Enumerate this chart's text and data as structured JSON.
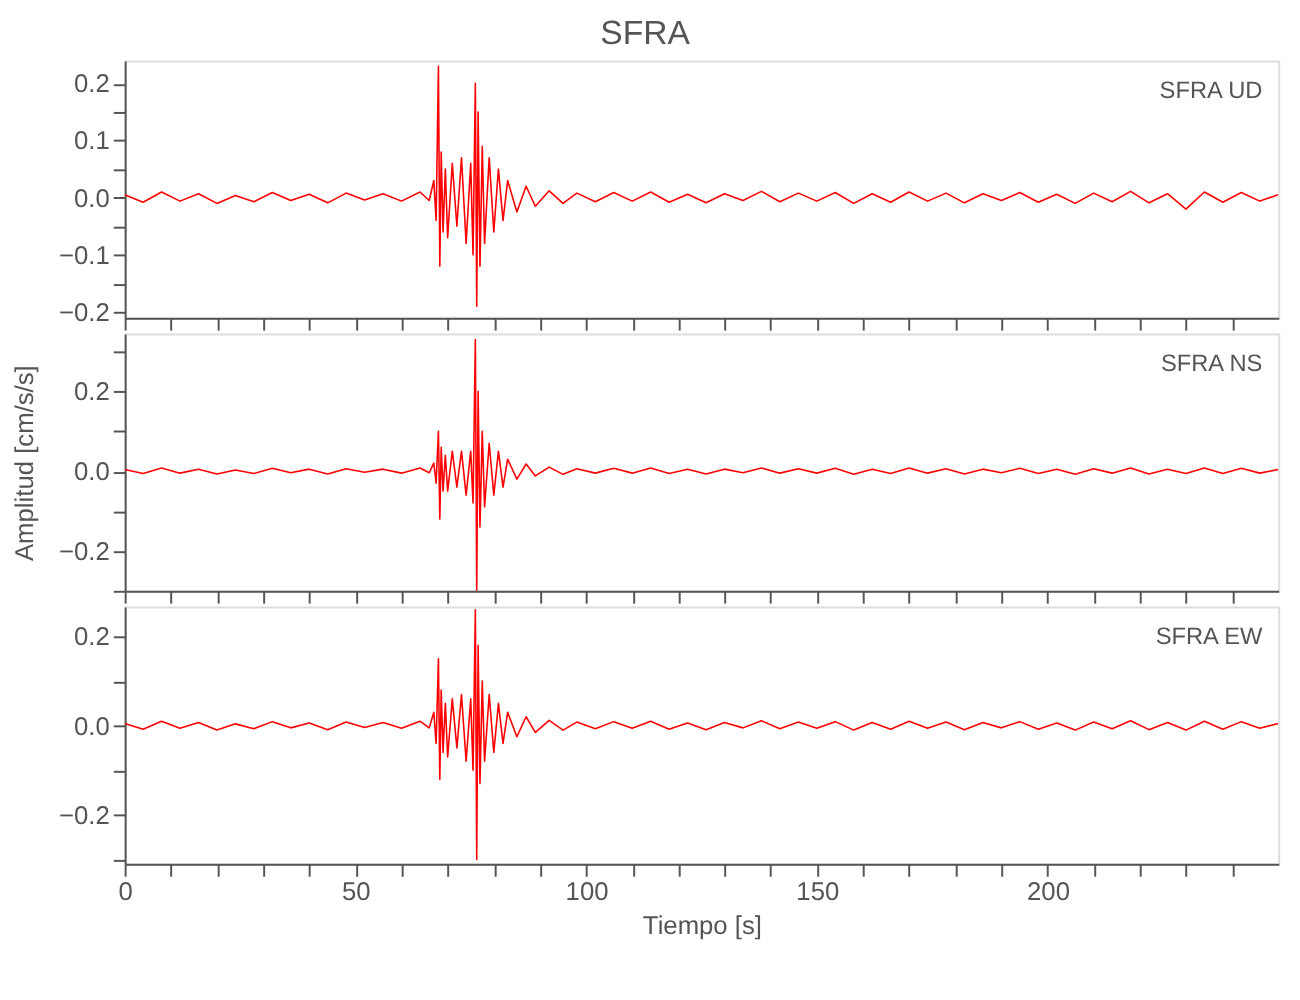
{
  "chart_data": [
    {
      "type": "line",
      "title": "SFRA",
      "annotations": [
        "SFRA   UD"
      ],
      "grid": false,
      "tick_labels": "y",
      "xlim": [
        0,
        250
      ],
      "xticks": [
        0,
        {
          "value": 10,
          "label": null
        },
        {
          "value": 20,
          "label": null
        },
        {
          "value": 30,
          "label": null
        },
        {
          "value": 40,
          "label": null
        },
        50,
        {
          "value": 60,
          "label": null
        },
        {
          "value": 70,
          "label": null
        },
        {
          "value": 80,
          "label": null
        },
        {
          "value": 90,
          "label": null
        },
        100,
        {
          "value": 110,
          "label": null
        },
        {
          "value": 120,
          "label": null
        },
        {
          "value": 130,
          "label": null
        },
        {
          "value": 140,
          "label": null
        },
        150,
        {
          "value": 160,
          "label": null
        },
        {
          "value": 170,
          "label": null
        },
        {
          "value": 180,
          "label": null
        },
        {
          "value": 190,
          "label": null
        },
        200,
        {
          "value": 210,
          "label": null
        },
        {
          "value": 220,
          "label": null
        },
        {
          "value": 230,
          "label": null
        },
        {
          "value": 240,
          "label": null
        }
      ],
      "ylim": [
        -0.21,
        0.24
      ],
      "yticks": [
        -0.2,
        {
          "value": -0.15,
          "label": null
        },
        -0.1,
        {
          "value": -0.05,
          "label": null
        },
        {
          "value": 0,
          "label": "0.0"
        },
        {
          "value": 0.05,
          "label": null
        },
        0.1,
        {
          "value": 0.15,
          "label": null
        },
        0.2
      ],
      "x": [
        0,
        4,
        8,
        12,
        16,
        20,
        24,
        28,
        32,
        36,
        40,
        44,
        48,
        52,
        56,
        60,
        64,
        66,
        67,
        67.5,
        68,
        68.3,
        68.6,
        69,
        69.5,
        70,
        71,
        72,
        73,
        74,
        75,
        75.5,
        76,
        76.3,
        76.6,
        77,
        77.5,
        78,
        79,
        80,
        81,
        82,
        83,
        85,
        87,
        89,
        92,
        95,
        98,
        102,
        106,
        110,
        114,
        118,
        122,
        126,
        130,
        134,
        138,
        142,
        146,
        150,
        154,
        158,
        162,
        166,
        170,
        174,
        178,
        182,
        186,
        190,
        194,
        198,
        202,
        206,
        210,
        214,
        218,
        222,
        226,
        230,
        234,
        238,
        242,
        246,
        250
      ],
      "series": [
        {
          "color": "#ff0000",
          "values": [
            0.005,
            -0.008,
            0.01,
            -0.006,
            0.007,
            -0.01,
            0.004,
            -0.007,
            0.009,
            -0.005,
            0.006,
            -0.009,
            0.008,
            -0.004,
            0.007,
            -0.006,
            0.01,
            -0.005,
            0.03,
            -0.04,
            0.23,
            -0.12,
            0.08,
            -0.06,
            0.05,
            -0.07,
            0.06,
            -0.05,
            0.07,
            -0.08,
            0.06,
            -0.1,
            0.2,
            -0.19,
            0.15,
            -0.12,
            0.09,
            -0.08,
            0.07,
            -0.06,
            0.05,
            -0.04,
            0.03,
            -0.025,
            0.02,
            -0.015,
            0.012,
            -0.01,
            0.008,
            -0.007,
            0.009,
            -0.006,
            0.01,
            -0.008,
            0.006,
            -0.009,
            0.007,
            -0.005,
            0.011,
            -0.007,
            0.008,
            -0.006,
            0.009,
            -0.01,
            0.007,
            -0.008,
            0.01,
            -0.006,
            0.008,
            -0.009,
            0.007,
            -0.005,
            0.009,
            -0.008,
            0.006,
            -0.01,
            0.008,
            -0.007,
            0.011,
            -0.009,
            0.007,
            -0.02,
            0.01,
            -0.008,
            0.009,
            -0.006,
            0.005
          ]
        }
      ]
    },
    {
      "type": "line",
      "ylabel": "Amplitud [cm/s/s]",
      "annotations": [
        "SFRA   NS"
      ],
      "grid": false,
      "tick_labels": "y",
      "xlim": [
        0,
        250
      ],
      "xticks": [
        0,
        {
          "value": 10,
          "label": null
        },
        {
          "value": 20,
          "label": null
        },
        {
          "value": 30,
          "label": null
        },
        {
          "value": 40,
          "label": null
        },
        50,
        {
          "value": 60,
          "label": null
        },
        {
          "value": 70,
          "label": null
        },
        {
          "value": 80,
          "label": null
        },
        {
          "value": 90,
          "label": null
        },
        100,
        {
          "value": 110,
          "label": null
        },
        {
          "value": 120,
          "label": null
        },
        {
          "value": 130,
          "label": null
        },
        {
          "value": 140,
          "label": null
        },
        150,
        {
          "value": 160,
          "label": null
        },
        {
          "value": 170,
          "label": null
        },
        {
          "value": 180,
          "label": null
        },
        {
          "value": 190,
          "label": null
        },
        200,
        {
          "value": 210,
          "label": null
        },
        {
          "value": 220,
          "label": null
        },
        {
          "value": 230,
          "label": null
        },
        {
          "value": 240,
          "label": null
        }
      ],
      "ylim": [
        -0.3,
        0.345
      ],
      "yticks": [
        {
          "value": -0.3,
          "label": null
        },
        -0.2,
        {
          "value": -0.1,
          "label": null
        },
        {
          "value": 0,
          "label": "0.0"
        },
        {
          "value": 0.1,
          "label": null
        },
        0.2,
        {
          "value": 0.3,
          "label": null
        }
      ],
      "x": [
        0,
        4,
        8,
        12,
        16,
        20,
        24,
        28,
        32,
        36,
        40,
        44,
        48,
        52,
        56,
        60,
        64,
        66,
        67,
        67.5,
        68,
        68.3,
        68.6,
        69,
        69.5,
        70,
        71,
        72,
        73,
        74,
        75,
        75.5,
        76,
        76.3,
        76.6,
        77,
        77.5,
        78,
        79,
        80,
        81,
        82,
        83,
        85,
        87,
        89,
        92,
        95,
        98,
        102,
        106,
        110,
        114,
        118,
        122,
        126,
        130,
        134,
        138,
        142,
        146,
        150,
        154,
        158,
        162,
        166,
        170,
        174,
        178,
        182,
        186,
        190,
        194,
        198,
        202,
        206,
        210,
        214,
        218,
        222,
        226,
        230,
        234,
        238,
        242,
        246,
        250
      ],
      "series": [
        {
          "color": "#ff0000",
          "values": [
            0.004,
            -0.006,
            0.008,
            -0.005,
            0.005,
            -0.007,
            0.003,
            -0.006,
            0.007,
            -0.004,
            0.005,
            -0.007,
            0.006,
            -0.003,
            0.005,
            -0.005,
            0.008,
            -0.004,
            0.02,
            -0.03,
            0.1,
            -0.12,
            0.06,
            -0.05,
            0.04,
            -0.05,
            0.05,
            -0.04,
            0.05,
            -0.06,
            0.05,
            -0.08,
            0.33,
            -0.3,
            0.2,
            -0.14,
            0.1,
            -0.09,
            0.07,
            -0.06,
            0.05,
            -0.04,
            0.03,
            -0.02,
            0.018,
            -0.012,
            0.01,
            -0.008,
            0.006,
            -0.005,
            0.007,
            -0.005,
            0.008,
            -0.006,
            0.005,
            -0.007,
            0.005,
            -0.004,
            0.008,
            -0.005,
            0.006,
            -0.005,
            0.007,
            -0.008,
            0.005,
            -0.006,
            0.008,
            -0.005,
            0.006,
            -0.007,
            0.005,
            -0.004,
            0.007,
            -0.006,
            0.005,
            -0.008,
            0.006,
            -0.005,
            0.008,
            -0.007,
            0.005,
            -0.006,
            0.008,
            -0.006,
            0.007,
            -0.005,
            0.004
          ]
        }
      ]
    },
    {
      "type": "line",
      "xlabel": "Tiempo [s]",
      "annotations": [
        "SFRA   EW"
      ],
      "grid": false,
      "xlim": [
        0,
        250
      ],
      "xticks": [
        0,
        {
          "value": 10,
          "label": null
        },
        {
          "value": 20,
          "label": null
        },
        {
          "value": 30,
          "label": null
        },
        {
          "value": 40,
          "label": null
        },
        50,
        {
          "value": 60,
          "label": null
        },
        {
          "value": 70,
          "label": null
        },
        {
          "value": 80,
          "label": null
        },
        {
          "value": 90,
          "label": null
        },
        100,
        {
          "value": 110,
          "label": null
        },
        {
          "value": 120,
          "label": null
        },
        {
          "value": 130,
          "label": null
        },
        {
          "value": 140,
          "label": null
        },
        150,
        {
          "value": 160,
          "label": null
        },
        {
          "value": 170,
          "label": null
        },
        {
          "value": 180,
          "label": null
        },
        {
          "value": 190,
          "label": null
        },
        200,
        {
          "value": 210,
          "label": null
        },
        {
          "value": 220,
          "label": null
        },
        {
          "value": 230,
          "label": null
        },
        {
          "value": 240,
          "label": null
        }
      ],
      "ylim": [
        -0.31,
        0.267
      ],
      "yticks": [
        {
          "value": -0.3,
          "label": null
        },
        -0.2,
        {
          "value": -0.1,
          "label": null
        },
        {
          "value": 0,
          "label": "0.0"
        },
        {
          "value": 0.1,
          "label": null
        },
        0.2
      ],
      "x": [
        0,
        4,
        8,
        12,
        16,
        20,
        24,
        28,
        32,
        36,
        40,
        44,
        48,
        52,
        56,
        60,
        64,
        66,
        67,
        67.5,
        68,
        68.3,
        68.6,
        69,
        69.5,
        70,
        71,
        72,
        73,
        74,
        75,
        75.5,
        76,
        76.3,
        76.6,
        77,
        77.5,
        78,
        79,
        80,
        81,
        82,
        83,
        85,
        87,
        89,
        92,
        95,
        98,
        102,
        106,
        110,
        114,
        118,
        122,
        126,
        130,
        134,
        138,
        142,
        146,
        150,
        154,
        158,
        162,
        166,
        170,
        174,
        178,
        182,
        186,
        190,
        194,
        198,
        202,
        206,
        210,
        214,
        218,
        222,
        226,
        230,
        234,
        238,
        242,
        246,
        250
      ],
      "series": [
        {
          "color": "#ff0000",
          "values": [
            0.005,
            -0.008,
            0.01,
            -0.006,
            0.007,
            -0.01,
            0.004,
            -0.007,
            0.009,
            -0.005,
            0.006,
            -0.009,
            0.008,
            -0.004,
            0.007,
            -0.006,
            0.01,
            -0.005,
            0.03,
            -0.04,
            0.15,
            -0.12,
            0.08,
            -0.06,
            0.05,
            -0.07,
            0.06,
            -0.05,
            0.07,
            -0.08,
            0.06,
            -0.1,
            0.26,
            -0.3,
            0.18,
            -0.13,
            0.1,
            -0.08,
            0.07,
            -0.06,
            0.05,
            -0.04,
            0.03,
            -0.025,
            0.02,
            -0.015,
            0.012,
            -0.01,
            0.008,
            -0.007,
            0.009,
            -0.006,
            0.01,
            -0.008,
            0.006,
            -0.009,
            0.007,
            -0.005,
            0.011,
            -0.007,
            0.008,
            -0.006,
            0.009,
            -0.01,
            0.007,
            -0.008,
            0.01,
            -0.006,
            0.008,
            -0.009,
            0.007,
            -0.005,
            0.009,
            -0.008,
            0.006,
            -0.01,
            0.008,
            -0.007,
            0.011,
            -0.009,
            0.007,
            -0.01,
            0.01,
            -0.008,
            0.009,
            -0.006,
            0.005
          ]
        }
      ]
    }
  ]
}
